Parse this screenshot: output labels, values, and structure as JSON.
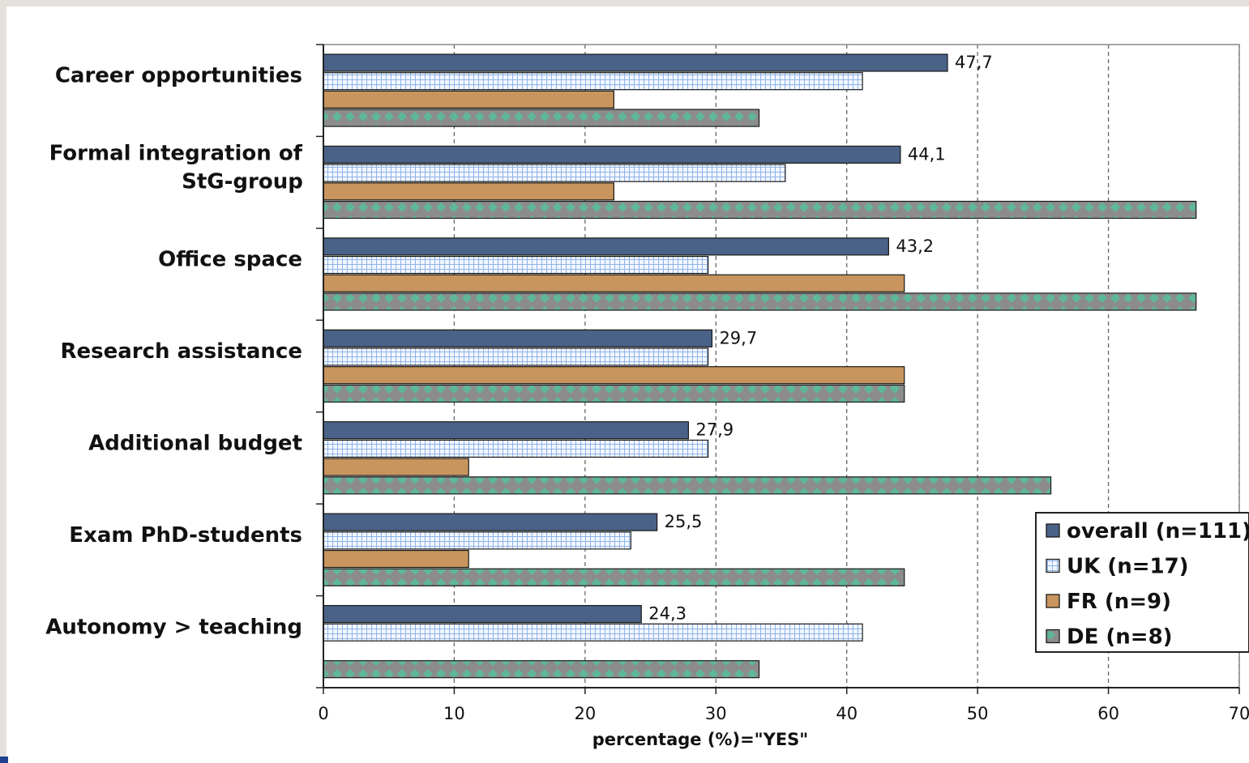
{
  "chart_data": {
    "type": "bar",
    "orientation": "horizontal",
    "categories": [
      "Career opportunities",
      "Formal integration of StG-group",
      "Office space",
      "Research assistance",
      "Additional budget",
      "Exam PhD-students",
      "Autonomy > teaching"
    ],
    "category_lines": [
      [
        "Career opportunities"
      ],
      [
        "Formal integration of",
        "StG-group"
      ],
      [
        "Office space"
      ],
      [
        "Research assistance"
      ],
      [
        "Additional budget"
      ],
      [
        "Exam PhD-students"
      ],
      [
        "Autonomy > teaching"
      ]
    ],
    "series": [
      {
        "name": "overall (n=111)",
        "values": [
          47.7,
          44.1,
          43.2,
          29.7,
          27.9,
          25.5,
          24.3
        ],
        "color": "#4a6287",
        "pattern": "solid"
      },
      {
        "name": "UK (n=17)",
        "values": [
          41.2,
          35.3,
          29.4,
          29.4,
          29.4,
          23.5,
          41.2
        ],
        "color": "#cfe0f7",
        "pattern": "grid"
      },
      {
        "name": "FR (n=9)",
        "values": [
          22.2,
          22.2,
          44.4,
          44.4,
          11.1,
          11.1,
          0
        ],
        "color": "#c8955e",
        "pattern": "solid"
      },
      {
        "name": "DE (n=8)",
        "values": [
          33.3,
          66.7,
          66.7,
          44.4,
          55.6,
          44.4,
          33.3
        ],
        "color": "#8c8c8c",
        "pattern": "diamond"
      }
    ],
    "data_labels": [
      "47,7",
      "44,1",
      "43,2",
      "29,7",
      "27,9",
      "25,5",
      "24,3"
    ],
    "data_label_series": "overall (n=111)",
    "xlim": [
      0,
      70
    ],
    "xticks": [
      "0",
      "10",
      "20",
      "30",
      "40",
      "50",
      "60",
      "70"
    ],
    "xlabel": "percentage (%)=\"YES\"",
    "ylabel": "",
    "title": "",
    "grid": "vertical dashed",
    "legend_position": "bottom-right"
  }
}
